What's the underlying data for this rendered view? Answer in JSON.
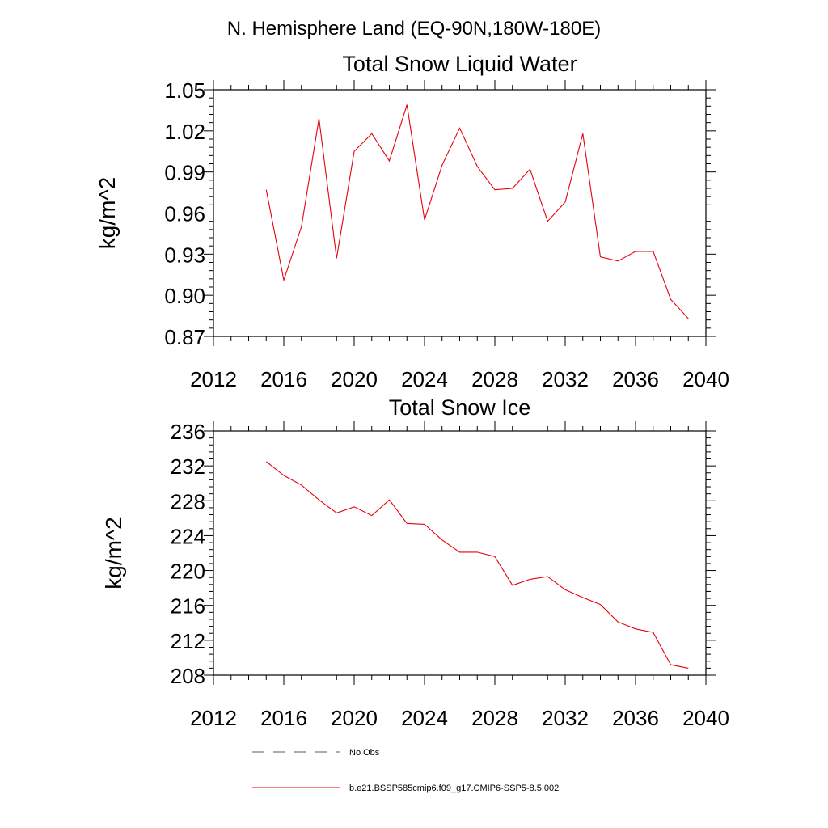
{
  "figure": {
    "main_title": "N. Hemisphere Land (EQ-90N,180W-180E)"
  },
  "chart_data": [
    {
      "type": "line",
      "title": "Total Snow Liquid Water",
      "ylabel": "kg/m^2",
      "xlabel": "",
      "xlim": [
        2012,
        2040
      ],
      "ylim": [
        0.87,
        1.05
      ],
      "xticks": [
        "2012",
        "2016",
        "2020",
        "2024",
        "2028",
        "2032",
        "2036",
        "2040"
      ],
      "yticks": [
        "0.87",
        "0.90",
        "0.93",
        "0.96",
        "0.99",
        "1.02",
        "1.05"
      ],
      "grid": false,
      "series": [
        {
          "name": "b.e21.BSSP585cmip6.f09_g17.CMIP6-SSP5-8.5.002",
          "color": "#e8000b",
          "x": [
            2015,
            2016,
            2017,
            2018,
            2019,
            2020,
            2021,
            2022,
            2023,
            2024,
            2025,
            2026,
            2027,
            2028,
            2029,
            2030,
            2031,
            2032,
            2033,
            2034,
            2035,
            2036,
            2037,
            2038,
            2039
          ],
          "y": [
            0.977,
            0.911,
            0.95,
            1.029,
            0.927,
            1.005,
            1.018,
            0.998,
            1.039,
            0.955,
            0.995,
            1.022,
            0.994,
            0.977,
            0.978,
            0.992,
            0.954,
            0.968,
            1.018,
            0.928,
            0.925,
            0.932,
            0.932,
            0.897,
            0.883
          ]
        }
      ]
    },
    {
      "type": "line",
      "title": "Total Snow Ice",
      "ylabel": "kg/m^2",
      "xlabel": "",
      "xlim": [
        2012,
        2040
      ],
      "ylim": [
        208,
        236
      ],
      "xticks": [
        "2012",
        "2016",
        "2020",
        "2024",
        "2028",
        "2032",
        "2036",
        "2040"
      ],
      "yticks": [
        "208",
        "212",
        "216",
        "220",
        "224",
        "228",
        "232",
        "236"
      ],
      "grid": false,
      "series": [
        {
          "name": "b.e21.BSSP585cmip6.f09_g17.CMIP6-SSP5-8.5.002",
          "color": "#e8000b",
          "x": [
            2015,
            2016,
            2017,
            2018,
            2019,
            2020,
            2021,
            2022,
            2023,
            2024,
            2025,
            2026,
            2027,
            2028,
            2029,
            2030,
            2031,
            2032,
            2033,
            2034,
            2035,
            2036,
            2037,
            2038,
            2039
          ],
          "y": [
            232.5,
            230.9,
            229.8,
            228.1,
            226.6,
            227.3,
            226.3,
            228.1,
            225.4,
            225.3,
            223.5,
            222.1,
            222.1,
            221.6,
            218.3,
            219.0,
            219.3,
            217.8,
            216.9,
            216.1,
            214.1,
            213.3,
            212.9,
            209.2,
            208.8
          ]
        }
      ]
    }
  ],
  "legend": {
    "placement": "bottom",
    "items": [
      {
        "label": "No Obs",
        "color": "#555577",
        "style": "dashed"
      },
      {
        "label": "b.e21.BSSP585cmip6.f09_g17.CMIP6-SSP5-8.5.002",
        "color": "#e8000b",
        "style": "solid"
      }
    ]
  }
}
